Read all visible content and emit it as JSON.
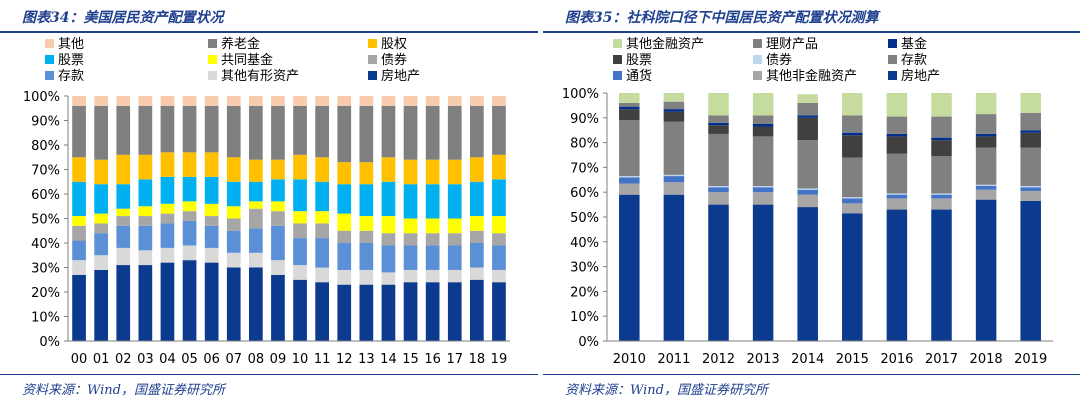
{
  "panels": [
    {
      "title": "图表34：美国居民资产配置状况",
      "source": "资料来源：Wind，国盛证券研究所"
    },
    {
      "title": "图表35：社科院口径下中国居民资产配置状况测算",
      "source": "资料来源：Wind，国盛证券研究所"
    }
  ],
  "chart_data": [
    {
      "type": "bar",
      "stacked": true,
      "title": "",
      "xlabel": "",
      "ylabel": "",
      "ylim": [
        0,
        100
      ],
      "yticks": [
        "0%",
        "10%",
        "20%",
        "30%",
        "40%",
        "50%",
        "60%",
        "70%",
        "80%",
        "90%",
        "100%"
      ],
      "grid": false,
      "legend_position": "top",
      "categories": [
        "00",
        "01",
        "02",
        "03",
        "04",
        "05",
        "06",
        "07",
        "08",
        "09",
        "10",
        "11",
        "12",
        "13",
        "14",
        "15",
        "16",
        "17",
        "18",
        "19"
      ],
      "series": [
        {
          "name": "房地产",
          "color": "#0b3a8f",
          "values": [
            27,
            29,
            31,
            31,
            32,
            33,
            32,
            30,
            30,
            27,
            25,
            24,
            23,
            23,
            23,
            24,
            24,
            24,
            25,
            24
          ]
        },
        {
          "name": "其他有形资产",
          "color": "#d9d9d9",
          "values": [
            6,
            6,
            7,
            6,
            6,
            6,
            6,
            6,
            6,
            6,
            6,
            6,
            6,
            6,
            5,
            5,
            5,
            5,
            5,
            5
          ]
        },
        {
          "name": "存款",
          "color": "#5b8fd6",
          "values": [
            8,
            9,
            9,
            10,
            10,
            10,
            9,
            9,
            10,
            14,
            11,
            12,
            11,
            11,
            11,
            10,
            10,
            10,
            10,
            10
          ]
        },
        {
          "name": "债券",
          "color": "#a6a6a6",
          "values": [
            6,
            4,
            4,
            4,
            4,
            4,
            4,
            5,
            8,
            6,
            6,
            6,
            5,
            5,
            5,
            5,
            5,
            5,
            5,
            5
          ]
        },
        {
          "name": "共同基金",
          "color": "#ffff00",
          "values": [
            4,
            4,
            3,
            4,
            4,
            4,
            5,
            5,
            3,
            4,
            5,
            5,
            7,
            6,
            7,
            6,
            6,
            6,
            6,
            7
          ]
        },
        {
          "name": "股票",
          "color": "#00b0f0",
          "values": [
            14,
            12,
            10,
            11,
            11,
            10,
            11,
            10,
            8,
            9,
            13,
            12,
            12,
            13,
            14,
            14,
            14,
            14,
            14,
            15
          ]
        },
        {
          "name": "股权",
          "color": "#ffc000",
          "values": [
            10,
            10,
            12,
            10,
            10,
            10,
            10,
            10,
            9,
            8,
            10,
            10,
            9,
            9,
            10,
            10,
            10,
            10,
            10,
            10
          ]
        },
        {
          "name": "养老金",
          "color": "#7f7f7f",
          "values": [
            21,
            22,
            20,
            20,
            19,
            19,
            19,
            21,
            22,
            22,
            20,
            21,
            23,
            23,
            21,
            22,
            22,
            22,
            21,
            20
          ]
        },
        {
          "name": "其他",
          "color": "#f8cbad",
          "values": [
            4,
            4,
            4,
            4,
            4,
            4,
            4,
            4,
            4,
            4,
            4,
            4,
            4,
            4,
            4,
            4,
            4,
            4,
            4,
            4
          ]
        }
      ]
    },
    {
      "type": "bar",
      "stacked": true,
      "title": "",
      "xlabel": "",
      "ylabel": "",
      "ylim": [
        0,
        100
      ],
      "yticks": [
        "0%",
        "10%",
        "20%",
        "30%",
        "40%",
        "50%",
        "60%",
        "70%",
        "80%",
        "90%",
        "100%"
      ],
      "grid": false,
      "legend_position": "top",
      "categories": [
        "2010",
        "2011",
        "2012",
        "2013",
        "2014",
        "2015",
        "2016",
        "2017",
        "2018",
        "2019"
      ],
      "series": [
        {
          "name": "房地产",
          "color": "#0b3a8f",
          "values": [
            59,
            59,
            55,
            55,
            54,
            51.5,
            53,
            53,
            57,
            56.5
          ]
        },
        {
          "name": "其他非金融资产",
          "color": "#a6a6a6",
          "values": [
            4.5,
            5,
            5,
            5,
            5,
            4,
            4.5,
            4.5,
            4,
            4
          ]
        },
        {
          "name": "通货",
          "color": "#4472c4",
          "values": [
            2.5,
            2.5,
            2,
            2,
            2,
            2,
            1.5,
            1.5,
            1.5,
            1.5
          ]
        },
        {
          "name": "债券",
          "color": "#bdd7ee",
          "values": [
            0.5,
            0.5,
            0.5,
            0.5,
            0.5,
            0.5,
            0.5,
            0.5,
            0.5,
            0.5
          ]
        },
        {
          "name": "存款",
          "color": "#808080",
          "values": [
            22.5,
            21.5,
            21,
            20,
            19.5,
            16,
            16,
            15,
            15,
            15.5
          ]
        },
        {
          "name": "股票",
          "color": "#404040",
          "values": [
            4.5,
            4,
            3.5,
            4,
            9,
            9,
            7,
            6.5,
            4.5,
            6
          ]
        },
        {
          "name": "基金",
          "color": "#002f8e",
          "values": [
            1,
            1,
            1,
            1,
            1,
            1,
            1,
            1,
            1,
            1
          ]
        },
        {
          "name": "理财产品",
          "color": "#808080",
          "values": [
            1.5,
            3,
            3,
            3.5,
            5,
            7,
            7,
            8.5,
            8,
            7
          ]
        },
        {
          "name": "其他金融资产",
          "color": "#c5dc9e",
          "values": [
            4,
            3.5,
            9,
            9,
            3.5,
            9,
            9.5,
            9.5,
            8.5,
            8
          ]
        }
      ]
    }
  ]
}
